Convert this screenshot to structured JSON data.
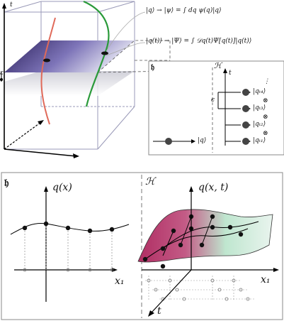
{
  "top": {
    "axis_t": "t",
    "epsilon": "ε",
    "eq1": "|q⟩ → |ψ⟩ = ∫ dq ψ(q)|q⟩",
    "eq2": "|q(t)⟩ → |Ψ⟩ = ∫ 𝒟q(t)Ψ[q(t)]|q(t)⟩"
  },
  "inset": {
    "H_frak": "𝔥",
    "H_cal": "ℋ",
    "t": "t",
    "eps": "ϵ",
    "ket_q": "|q⟩",
    "dots": "⋮",
    "kets": [
      "|q_{t4}⟩",
      "|q_{t3}⟩",
      "|q_{t2}⟩",
      "|q_{t1}⟩"
    ],
    "kets_display": [
      "|qₜ₄⟩",
      "|qₜ₃⟩",
      "|qₜ₂⟩",
      "|qₜ₁⟩"
    ],
    "otimes": "⊗"
  },
  "bottom": {
    "left": {
      "title": "𝔥",
      "ylabel": "q(x)",
      "xlabel": "x₁"
    },
    "right": {
      "title": "ℋ",
      "ylabel": "q(x, t)",
      "xlabel": "x₁",
      "tlabel": "t"
    }
  }
}
